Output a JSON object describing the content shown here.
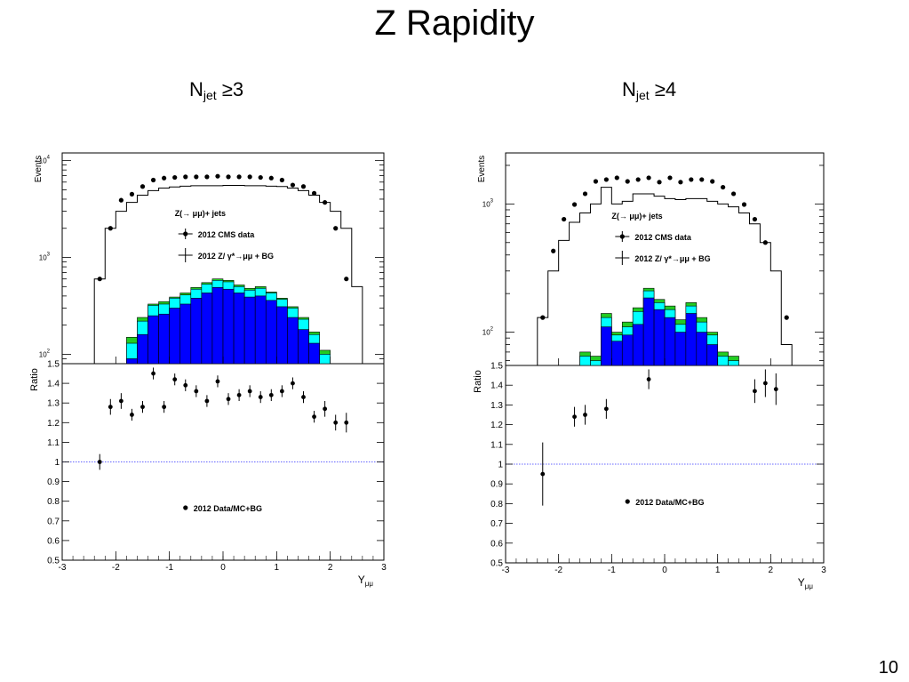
{
  "slide": {
    "title": "Z Rapidity",
    "page_number": "10",
    "accent_colors": {
      "blue": "#0000ff",
      "cyan": "#00ffff",
      "green": "#22cc22",
      "black": "#000000"
    }
  },
  "chart_data": [
    {
      "type": "histogram-stacked-with-data-and-ratio",
      "title_prefix": "N",
      "title_sub": "jet",
      "title_suffix": " ≥3",
      "top": {
        "ylabel": "Events",
        "yscale": "log",
        "ylim": [
          80,
          12000
        ],
        "yticks": [
          {
            "v": 100,
            "base": "10",
            "exp": "2"
          },
          {
            "v": 1000,
            "base": "10",
            "exp": "3"
          },
          {
            "v": 10000,
            "base": "10",
            "exp": "4"
          }
        ],
        "bins_edges": [
          -3,
          -2.8,
          -2.6,
          -2.4,
          -2.2,
          -2.0,
          -1.8,
          -1.6,
          -1.4,
          -1.2,
          -1.0,
          -0.8,
          -0.6,
          -0.4,
          -0.2,
          0.0,
          0.2,
          0.4,
          0.6,
          0.8,
          1.0,
          1.2,
          1.4,
          1.6,
          1.8,
          2.0,
          2.2,
          2.4,
          2.6,
          2.8,
          3.0
        ],
        "mc_total": [
          0,
          0,
          0,
          600,
          2000,
          3000,
          3700,
          4400,
          4900,
          5200,
          5350,
          5450,
          5500,
          5500,
          5500,
          5550,
          5550,
          5500,
          5500,
          5450,
          5400,
          5200,
          4900,
          4400,
          3700,
          3000,
          2000,
          500,
          0,
          0
        ],
        "stack_blue": [
          0,
          0,
          0,
          0,
          0,
          0,
          90,
          160,
          250,
          260,
          300,
          330,
          380,
          430,
          490,
          470,
          430,
          390,
          400,
          360,
          310,
          240,
          180,
          130,
          80,
          0,
          0,
          0,
          0,
          0
        ],
        "stack_cyan": [
          0,
          0,
          0,
          0,
          0,
          60,
          130,
          220,
          320,
          330,
          380,
          410,
          470,
          530,
          580,
          560,
          500,
          460,
          480,
          430,
          370,
          300,
          230,
          160,
          100,
          0,
          0,
          0,
          0,
          0
        ],
        "stack_green": [
          0,
          0,
          0,
          0,
          0,
          80,
          150,
          240,
          330,
          350,
          390,
          430,
          490,
          550,
          600,
          580,
          520,
          480,
          500,
          440,
          380,
          310,
          240,
          170,
          110,
          0,
          0,
          0,
          0,
          0
        ],
        "data_x": [
          -2.3,
          -2.1,
          -1.9,
          -1.7,
          -1.5,
          -1.3,
          -1.1,
          -0.9,
          -0.7,
          -0.5,
          -0.3,
          -0.1,
          0.1,
          0.3,
          0.5,
          0.7,
          0.9,
          1.1,
          1.3,
          1.5,
          1.7,
          1.9,
          2.1,
          2.3
        ],
        "data_y": [
          600,
          2000,
          3900,
          4500,
          5400,
          6300,
          6600,
          6700,
          6800,
          6800,
          6800,
          6900,
          6800,
          6800,
          6800,
          6700,
          6600,
          6300,
          5600,
          5400,
          4600,
          3700,
          2000,
          600
        ]
      },
      "bottom": {
        "ylabel": "Ratio",
        "ylim": [
          0.5,
          1.5
        ],
        "yticks": [
          "0.5",
          "0.6",
          "0.7",
          "0.8",
          "0.9",
          "1",
          "1.1",
          "1.2",
          "1.3",
          "1.4",
          "1.5"
        ],
        "xlabel": "Y",
        "xlabel_sub": "μμ",
        "xlim": [
          -3,
          3
        ],
        "xticks": [
          "-3",
          "-2",
          "-1",
          "0",
          "1",
          "2",
          "3"
        ],
        "ratio_x": [
          -2.3,
          -2.1,
          -1.9,
          -1.7,
          -1.5,
          -1.3,
          -1.1,
          -0.9,
          -0.7,
          -0.5,
          -0.3,
          -0.1,
          0.1,
          0.3,
          0.5,
          0.7,
          0.9,
          1.1,
          1.3,
          1.5,
          1.7,
          1.9,
          2.1,
          2.3
        ],
        "ratio_y": [
          1.0,
          1.28,
          1.31,
          1.24,
          1.28,
          1.45,
          1.28,
          1.42,
          1.39,
          1.36,
          1.31,
          1.41,
          1.32,
          1.34,
          1.36,
          1.33,
          1.34,
          1.36,
          1.4,
          1.33,
          1.23,
          1.27,
          1.2,
          1.2
        ],
        "ratio_err": [
          0.04,
          0.04,
          0.04,
          0.03,
          0.03,
          0.03,
          0.03,
          0.03,
          0.03,
          0.03,
          0.03,
          0.03,
          0.03,
          0.03,
          0.03,
          0.03,
          0.03,
          0.03,
          0.03,
          0.03,
          0.03,
          0.04,
          0.04,
          0.05
        ],
        "reference": 1.0,
        "legend": "2012 Data/MC+BG"
      },
      "legend": [
        {
          "label": "Z(→ μμ)+ jets",
          "marker": "none"
        },
        {
          "label": "2012 CMS data",
          "marker": "dot-errorbar"
        },
        {
          "label": "2012 Z/ γ*→μμ + BG",
          "marker": "cross"
        }
      ]
    },
    {
      "type": "histogram-stacked-with-data-and-ratio",
      "title_prefix": "N",
      "title_sub": "jet",
      "title_suffix": " ≥4",
      "top": {
        "ylabel": "Events",
        "yscale": "log",
        "ylim": [
          55,
          2500
        ],
        "yticks": [
          {
            "v": 100,
            "base": "10",
            "exp": "2"
          },
          {
            "v": 1000,
            "base": "10",
            "exp": "3"
          }
        ],
        "bins_edges": [
          -3,
          -2.8,
          -2.6,
          -2.4,
          -2.2,
          -2.0,
          -1.8,
          -1.6,
          -1.4,
          -1.2,
          -1.0,
          -0.8,
          -0.6,
          -0.4,
          -0.2,
          0.0,
          0.2,
          0.4,
          0.6,
          0.8,
          1.0,
          1.2,
          1.4,
          1.6,
          1.8,
          2.0,
          2.2,
          2.4,
          2.6,
          2.8,
          3.0
        ],
        "mc_total": [
          0,
          0,
          0,
          130,
          300,
          520,
          720,
          850,
          1000,
          1350,
          1000,
          1050,
          1200,
          1200,
          1150,
          1100,
          1080,
          1100,
          1100,
          1050,
          1000,
          950,
          850,
          700,
          500,
          300,
          80,
          0,
          0,
          0
        ],
        "stack_blue": [
          0,
          0,
          0,
          0,
          0,
          0,
          0,
          0,
          0,
          110,
          85,
          95,
          115,
          185,
          150,
          130,
          100,
          140,
          100,
          80,
          0,
          0,
          0,
          0,
          0,
          0,
          0,
          0,
          0,
          0
        ],
        "stack_cyan": [
          0,
          0,
          0,
          0,
          0,
          0,
          0,
          65,
          60,
          130,
          95,
          110,
          145,
          210,
          170,
          150,
          115,
          160,
          120,
          95,
          65,
          60,
          0,
          0,
          0,
          0,
          0,
          0,
          0,
          0
        ],
        "stack_green": [
          0,
          0,
          0,
          0,
          0,
          0,
          0,
          70,
          65,
          140,
          100,
          120,
          155,
          220,
          180,
          160,
          125,
          170,
          130,
          100,
          70,
          65,
          0,
          0,
          0,
          0,
          0,
          0,
          0,
          0
        ],
        "data_x": [
          -2.3,
          -2.1,
          -1.9,
          -1.7,
          -1.5,
          -1.3,
          -1.1,
          -0.9,
          -0.7,
          -0.5,
          -0.3,
          -0.1,
          0.1,
          0.3,
          0.5,
          0.7,
          0.9,
          1.1,
          1.3,
          1.5,
          1.7,
          1.9,
          2.1,
          2.3
        ],
        "data_y": [
          130,
          430,
          760,
          990,
          1200,
          1500,
          1550,
          1600,
          1500,
          1550,
          1600,
          1480,
          1600,
          1480,
          1550,
          1550,
          1500,
          1350,
          1200,
          990,
          760,
          500,
          0,
          130
        ]
      },
      "bottom": {
        "ylabel": "Ratio",
        "ylim": [
          0.5,
          1.5
        ],
        "yticks": [
          "0.5",
          "0.6",
          "0.7",
          "0.8",
          "0.9",
          "1",
          "1.1",
          "1.2",
          "1.3",
          "1.4",
          "1.5"
        ],
        "xlabel": "Y",
        "xlabel_sub": "μμ",
        "xlim": [
          -3,
          3
        ],
        "xticks": [
          "-3",
          "-2",
          "-1",
          "0",
          "1",
          "2",
          "3"
        ],
        "ratio_x": [
          -2.3,
          -1.7,
          -1.5,
          -1.1,
          -0.3,
          1.7,
          1.9,
          2.1
        ],
        "ratio_y": [
          0.95,
          1.24,
          1.25,
          1.28,
          1.43,
          1.37,
          1.41,
          1.38
        ],
        "ratio_err": [
          0.16,
          0.05,
          0.05,
          0.05,
          0.05,
          0.06,
          0.07,
          0.08
        ],
        "reference": 1.0,
        "legend": "2012 Data/MC+BG"
      },
      "legend": [
        {
          "label": "Z(→ μμ)+ jets",
          "marker": "none"
        },
        {
          "label": "2012 CMS data",
          "marker": "dot-errorbar"
        },
        {
          "label": "2012 Z/ γ*→μμ + BG",
          "marker": "cross"
        }
      ]
    }
  ]
}
